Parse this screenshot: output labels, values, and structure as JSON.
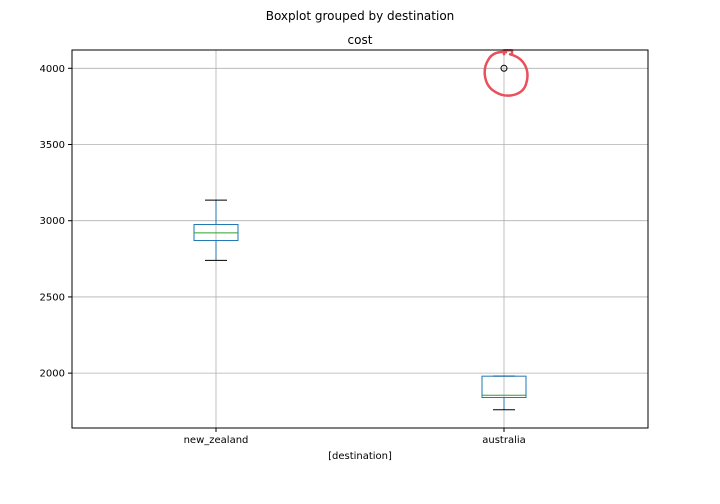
{
  "chart_data": {
    "type": "boxplot",
    "suptitle": "Boxplot grouped by destination",
    "title": "cost",
    "xlabel": "[destination]",
    "ylabel": "",
    "categories": [
      "new_zealand",
      "australia"
    ],
    "ylim": [
      1640,
      4120
    ],
    "yticks": [
      2000,
      2500,
      3000,
      3500,
      4000
    ],
    "grid": true,
    "box_color": "#1f77b4",
    "median_color": "#2ca02c",
    "whisker_color": "#000000",
    "annotation_color": "#e8505b",
    "boxes": [
      {
        "category": "new_zealand",
        "whisker_low": 2740,
        "q1": 2870,
        "median": 2920,
        "q3": 2975,
        "whisker_high": 3135,
        "outliers": []
      },
      {
        "category": "australia",
        "whisker_low": 1760,
        "q1": 1840,
        "median": 1855,
        "q3": 1980,
        "whisker_high": 1980,
        "outliers": [
          4000
        ]
      }
    ],
    "annotation": {
      "type": "hand-drawn-circle",
      "target_category": "australia",
      "target_value": 4000
    }
  }
}
